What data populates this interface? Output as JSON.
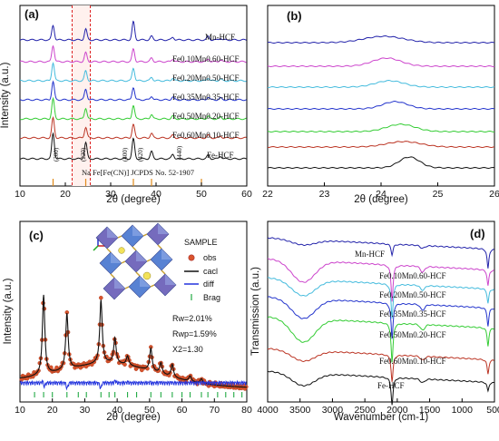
{
  "chart_data": [
    {
      "panel": "(a)",
      "type": "line",
      "xlabel": "2θ (degree)",
      "ylabel": "Intensity (a.u.)",
      "xlim": [
        10,
        60
      ],
      "xticks": [
        10,
        20,
        30,
        40,
        50,
        60
      ],
      "peaks": [
        17.3,
        24.5,
        35.0,
        39.0,
        43.7,
        51.5,
        54.2
      ],
      "reference_lines": [
        17.3,
        24.5,
        35.0,
        39.0,
        50.0
      ],
      "highlight_region": [
        21.5,
        25.5
      ],
      "series": [
        {
          "name": "Mn-HCF",
          "color": "#2222aa",
          "peak_heights": [
            16,
            12,
            20,
            4,
            3,
            4,
            2
          ]
        },
        {
          "name": "Fe0.10Mn0.60-HCF",
          "color": "#cc44cc",
          "peak_heights": [
            18,
            10,
            14,
            4,
            3,
            3,
            2
          ]
        },
        {
          "name": "Fe0.20Mn0.50-HCF",
          "color": "#44bbdd",
          "peak_heights": [
            20,
            11,
            14,
            4,
            3,
            3,
            2
          ]
        },
        {
          "name": "Fe0.35Mn0.35-HCF",
          "color": "#2233cc",
          "peak_heights": [
            20,
            12,
            14,
            4,
            3,
            3,
            2
          ]
        },
        {
          "name": "Fe0.50Mn0.20-HCF",
          "color": "#33cc33",
          "peak_heights": [
            22,
            12,
            15,
            5,
            3,
            3,
            2
          ]
        },
        {
          "name": "Fe0.60Mn0.10-HCF",
          "color": "#bb3322",
          "peak_heights": [
            22,
            12,
            15,
            5,
            3,
            3,
            2
          ]
        },
        {
          "name": "Fe-HCF",
          "color": "#111111",
          "peak_heights": [
            28,
            18,
            22,
            8,
            5,
            4,
            3
          ]
        }
      ],
      "annotations": {
        "hkl": [
          "(200)",
          "(220)",
          "(400)",
          "(420)",
          "(440)"
        ],
        "reference": "Na Fe[Fe(CN)] JCPDS No. 52-1907"
      }
    },
    {
      "panel": "(b)",
      "type": "line",
      "xlabel": "2θ (degree)",
      "xlim": [
        22,
        26
      ],
      "xticks": [
        22,
        23,
        24,
        25,
        26
      ],
      "series": [
        {
          "name": "Mn-HCF",
          "color": "#2222aa",
          "peak_center": 24.05,
          "peak_height": 7,
          "peak_width": 0.35
        },
        {
          "name": "Fe0.10Mn0.60-HCF",
          "color": "#cc44cc",
          "peak_center": 24.1,
          "peak_height": 9,
          "peak_width": 0.25
        },
        {
          "name": "Fe0.20Mn0.50-HCF",
          "color": "#44bbdd",
          "peak_center": 24.15,
          "peak_height": 7,
          "peak_width": 0.25
        },
        {
          "name": "Fe0.35Mn0.35-HCF",
          "color": "#2233cc",
          "peak_center": 24.25,
          "peak_height": 8,
          "peak_width": 0.22
        },
        {
          "name": "Fe0.50Mn0.20-HCF",
          "color": "#33cc33",
          "peak_center": 24.35,
          "peak_height": 8,
          "peak_width": 0.25
        },
        {
          "name": "Fe0.60Mn0.10-HCF",
          "color": "#bb3322",
          "peak_center": 24.4,
          "peak_height": 6,
          "peak_width": 0.3
        },
        {
          "name": "Fe-HCF",
          "color": "#111111",
          "peak_center": 24.5,
          "peak_height": 12,
          "peak_width": 0.18
        }
      ]
    },
    {
      "panel": "(c)",
      "type": "scatter",
      "xlabel": "2θ (degree)",
      "ylabel": "Intensity (a.u.)",
      "xlim": [
        10,
        80
      ],
      "xticks": [
        10,
        20,
        30,
        40,
        50,
        60,
        70,
        80
      ],
      "peaks": [
        {
          "x": 17.3,
          "h": 88
        },
        {
          "x": 24.5,
          "h": 62
        },
        {
          "x": 35.0,
          "h": 70
        },
        {
          "x": 39.3,
          "h": 28
        },
        {
          "x": 43.2,
          "h": 10
        },
        {
          "x": 50.4,
          "h": 25
        },
        {
          "x": 53.5,
          "h": 12
        },
        {
          "x": 57.0,
          "h": 14
        },
        {
          "x": 62.5,
          "h": 6
        },
        {
          "x": 66.0,
          "h": 5
        }
      ],
      "bragg_positions": [
        14.5,
        17.3,
        20.0,
        24.5,
        28.0,
        30.5,
        35.0,
        37.5,
        39.3,
        43.2,
        46.0,
        50.4,
        53.5,
        57.0,
        60.0,
        62.5,
        66.0,
        68.0,
        71.0,
        73.5,
        76.0,
        78.5
      ],
      "legend_title": "SAMPLE",
      "legend": [
        "obs",
        "cacl",
        "diff",
        "Brag"
      ],
      "stats": [
        "Rw=2.01%",
        "Rwp=1.59%",
        "X2=1.30"
      ]
    },
    {
      "panel": "(d)",
      "type": "line",
      "xlabel": "Wavenumber (cm-1)",
      "ylabel": "Transmission (a.u.)",
      "xlim": [
        4000,
        500
      ],
      "xticks": [
        4000,
        3500,
        3000,
        2500,
        2000,
        1500,
        1000,
        500
      ],
      "bands": [
        3450,
        2080,
        1610,
        600
      ],
      "series": [
        {
          "name": "Mn-HCF",
          "color": "#2222aa"
        },
        {
          "name": "Fe0.10Mn0.60-HCF",
          "color": "#cc44cc"
        },
        {
          "name": "Fe0.20Mn0.50-HCF",
          "color": "#44bbdd"
        },
        {
          "name": "Fe0.35Mn0.35-HCF",
          "color": "#2233cc"
        },
        {
          "name": "Fe0.50Mn0.20-HCF",
          "color": "#33cc33"
        },
        {
          "name": "Fe0.60Mn0.10-HCF",
          "color": "#bb3322"
        },
        {
          "name": "Fe-HCF",
          "color": "#111111"
        }
      ]
    }
  ],
  "text": {
    "a": {
      "panel": "(a)",
      "xlabel": "2θ (degree)",
      "ylabel": "Intensity (a.u.)",
      "labels": [
        "Mn-HCF",
        "Fe0.10Mn0.60-HCF",
        "Fe0.20Mn0.50-HCF",
        "Fe0.35Mn0.35-HCF",
        "Fe0.50Mn0.20-HCF",
        "Fe0.60Mn0.10-HCF",
        "Fe-HCF"
      ],
      "hkl": [
        "(200)",
        "(220)",
        "(400)",
        "(420)",
        "(440)"
      ],
      "ref_note": "Na Fe[Fe(CN)] JCPDS No. 52-1907"
    },
    "b": {
      "panel": "(b)",
      "xlabel": "2θ (degree)"
    },
    "c": {
      "panel": "(c)",
      "xlabel": "2θ (degree)",
      "ylabel": "Intensity (a.u.)",
      "legend_title": "SAMPLE",
      "legend": [
        "obs",
        "cacl",
        "diff",
        "Brag"
      ],
      "stats": [
        "Rw=2.01%",
        "Rwp=1.59%",
        "X2=1.30"
      ]
    },
    "d": {
      "panel": "(d)",
      "xlabel": "Wavenumber (cm-1)",
      "ylabel": "Transmission (a.u.)",
      "labels": [
        "Mn-HCF",
        "Fe0.10Mn0.60-HCF",
        "Fe0.20Mn0.50-HCF",
        "Fe0.35Mn0.35-HCF",
        "Fe0.50Mn0.20-HCF",
        "Fe0.60Mn0.10-HCF",
        "Fe-HCF"
      ]
    }
  }
}
